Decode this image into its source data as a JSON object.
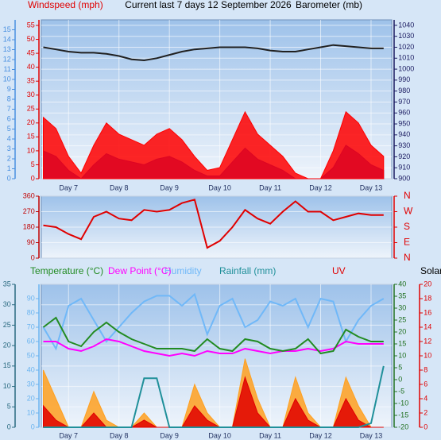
{
  "chart_data": [
    {
      "type": "line",
      "title": "Current last 7 days 12 September 2026",
      "ylabel": "Windspeed (mph)",
      "y2label": "Barometer (mb)",
      "x": [
        6.5,
        6.75,
        7,
        7.25,
        7.5,
        7.75,
        8,
        8.25,
        8.5,
        8.75,
        9,
        9.25,
        9.5,
        9.75,
        10,
        10.25,
        10.5,
        10.75,
        11,
        11.25,
        11.5,
        11.75,
        12,
        12.25,
        12.5,
        12.75,
        13,
        13.25
      ],
      "xlim": [
        6.46,
        13.41
      ],
      "xticks": [
        {
          "value": 7,
          "label": "Day 7"
        },
        {
          "value": 8,
          "label": "Day 8"
        },
        {
          "value": 9,
          "label": "Day 9"
        },
        {
          "value": 10,
          "label": "Day 10"
        },
        {
          "value": 11,
          "label": "Day 11"
        },
        {
          "value": 12,
          "label": "Day 12"
        },
        {
          "value": 13,
          "label": "Day 13"
        }
      ],
      "axes": [
        {
          "id": "y",
          "side": "left",
          "color": "#e00000",
          "lim": [
            0,
            57
          ],
          "ticks": [
            0,
            5,
            10,
            15,
            20,
            25,
            30,
            35,
            40,
            45,
            50,
            55
          ]
        },
        {
          "id": "y3",
          "side": "left",
          "color": "#4a90e0",
          "lim": [
            0,
            16
          ],
          "ticks": [
            0,
            1,
            2,
            3,
            4,
            5,
            6,
            7,
            8,
            9,
            10,
            11,
            12,
            13,
            14,
            15
          ]
        },
        {
          "id": "y2",
          "side": "right",
          "color": "#1a1a60",
          "lim": [
            900,
            1045
          ],
          "grid": true,
          "ticks": [
            900,
            910,
            920,
            930,
            940,
            950,
            960,
            970,
            980,
            990,
            1000,
            1010,
            1020,
            1030,
            1040
          ]
        }
      ],
      "series": [
        {
          "color": "#ff0000",
          "axis": "y",
          "fill": true,
          "values": [
            22,
            18,
            8,
            2,
            12,
            20,
            16,
            14,
            12,
            16,
            18,
            14,
            8,
            3,
            4,
            14,
            24,
            16,
            12,
            8,
            2,
            0,
            0,
            10,
            24,
            20,
            12,
            8
          ]
        },
        {
          "color": "#2020e0",
          "axis": "y",
          "fill": true,
          "values": [
            10,
            8,
            3,
            0,
            5,
            9,
            7,
            6,
            5,
            7,
            8,
            6,
            3,
            1,
            1,
            6,
            11,
            7,
            5,
            3,
            0,
            0,
            0,
            4,
            12,
            9,
            5,
            3
          ]
        },
        {
          "color": "#202020",
          "axis": "y2",
          "values": [
            1020,
            1018,
            1016,
            1015,
            1015,
            1014,
            1012,
            1009,
            1008,
            1010,
            1013,
            1016,
            1018,
            1019,
            1020,
            1020,
            1020,
            1019,
            1017,
            1016,
            1016,
            1018,
            1020,
            1022,
            1021,
            1020,
            1019,
            1019
          ]
        }
      ]
    },
    {
      "type": "line",
      "x": [
        6.5,
        6.75,
        7,
        7.25,
        7.5,
        7.75,
        8,
        8.25,
        8.5,
        8.75,
        9,
        9.25,
        9.5,
        9.75,
        10,
        10.25,
        10.5,
        10.75,
        11,
        11.25,
        11.5,
        11.75,
        12,
        12.25,
        12.5,
        12.75,
        13,
        13.25
      ],
      "xlim": [
        6.46,
        13.41
      ],
      "axes": [
        {
          "id": "y",
          "side": "left",
          "color": "#c00000",
          "lim": [
            0,
            360
          ],
          "grid": true,
          "ticks": [
            0,
            90,
            180,
            270,
            360
          ]
        },
        {
          "id": "y2",
          "side": "right",
          "color": "#e00000",
          "lim": [
            0,
            360
          ],
          "ticks": [
            {
              "value": 360,
              "label": "N"
            },
            {
              "value": 270,
              "label": "W"
            },
            {
              "value": 180,
              "label": "S"
            },
            {
              "value": 90,
              "label": "E"
            },
            {
              "value": 0,
              "label": "N"
            }
          ]
        }
      ],
      "series": [
        {
          "color": "#e00000",
          "axis": "y",
          "values": [
            190,
            180,
            140,
            110,
            240,
            270,
            230,
            220,
            280,
            270,
            280,
            320,
            340,
            60,
            100,
            180,
            280,
            230,
            200,
            270,
            330,
            270,
            270,
            220,
            240,
            260,
            250,
            250
          ]
        }
      ]
    },
    {
      "type": "line",
      "x": [
        6.5,
        6.75,
        7,
        7.25,
        7.5,
        7.75,
        8,
        8.25,
        8.5,
        8.75,
        9,
        9.25,
        9.5,
        9.75,
        10,
        10.25,
        10.5,
        10.75,
        11,
        11.25,
        11.5,
        11.75,
        12,
        12.25,
        12.5,
        12.75,
        13,
        13.25
      ],
      "xlim": [
        6.46,
        13.41
      ],
      "xticks": [
        {
          "value": 7,
          "label": "Day 7"
        },
        {
          "value": 8,
          "label": "Day 8"
        },
        {
          "value": 9,
          "label": "Day 9"
        },
        {
          "value": 10,
          "label": "Day 10"
        },
        {
          "value": 11,
          "label": "Day 11"
        },
        {
          "value": 12,
          "label": "Day 12"
        },
        {
          "value": 13,
          "label": "Day 13"
        }
      ],
      "axes": [
        {
          "id": "y",
          "side": "left",
          "color": "#6ab4f0",
          "lim": [
            0,
            100
          ],
          "ticks": [
            0,
            10,
            20,
            30,
            40,
            50,
            60,
            70,
            80,
            90
          ]
        },
        {
          "id": "y2",
          "side": "left",
          "color": "#2a6a80",
          "lim": [
            0,
            35
          ],
          "grid": true,
          "ticks": [
            0,
            5,
            10,
            15,
            20,
            25,
            30,
            35
          ]
        },
        {
          "id": "y3",
          "side": "right",
          "color": "#207020",
          "lim": [
            -20,
            40
          ],
          "ticks": [
            -20,
            -15,
            -10,
            -5,
            0,
            5,
            10,
            15,
            20,
            25,
            30,
            35,
            40
          ]
        },
        {
          "id": "y4",
          "side": "right",
          "color": "#e00000",
          "lim": [
            0,
            20
          ],
          "ticks": [
            0,
            2,
            4,
            6,
            8,
            10,
            12,
            14,
            16,
            18,
            20
          ]
        },
        {
          "id": "y5",
          "lim": [
            0,
            1000
          ]
        }
      ],
      "series": [
        {
          "name": "Temperature (°C)",
          "color": "#228b22",
          "axis": "y3",
          "values": [
            22,
            26,
            16,
            14,
            20,
            24,
            20,
            17,
            15,
            13,
            13,
            13,
            12,
            17,
            13,
            12,
            17,
            16,
            13,
            12,
            13,
            17,
            11,
            12,
            21,
            18,
            16,
            16
          ]
        },
        {
          "name": "Dew Point (°C)",
          "color": "#ff00ff",
          "axis": "y3",
          "values": [
            16,
            16,
            13,
            12,
            14,
            17,
            16,
            14,
            12,
            11,
            10,
            11,
            10,
            12,
            11,
            11,
            13,
            12,
            11,
            12,
            12,
            13,
            12,
            13,
            16,
            15,
            15,
            15
          ]
        },
        {
          "name": "Humidity",
          "color": "#70b8f8",
          "axis": "y",
          "values": [
            70,
            55,
            85,
            90,
            75,
            60,
            70,
            80,
            88,
            92,
            92,
            85,
            93,
            65,
            85,
            90,
            70,
            75,
            88,
            85,
            90,
            70,
            90,
            88,
            60,
            75,
            85,
            90
          ]
        },
        {
          "name": "Rainfall (mm)",
          "color": "#20909a",
          "axis": "y2",
          "values": [
            0,
            0,
            0,
            0,
            0,
            0,
            0,
            0,
            12,
            12,
            0,
            0,
            0,
            0,
            0,
            0,
            0,
            0,
            0,
            0,
            0,
            0,
            0,
            0,
            0,
            0,
            1,
            15
          ]
        },
        {
          "name": "UV",
          "color": "#e00000",
          "axis": "y4",
          "fill": true,
          "values": [
            3,
            1,
            0,
            0,
            2,
            0,
            0,
            0,
            1,
            0,
            0,
            0,
            3,
            1,
            0,
            0,
            7,
            2,
            0,
            0,
            4,
            1,
            0,
            0,
            4,
            1,
            0,
            0
          ]
        },
        {
          "name": "Solar",
          "color": "#ffa020",
          "axis": "y5",
          "fill": true,
          "values": [
            400,
            200,
            0,
            0,
            250,
            50,
            0,
            0,
            100,
            0,
            0,
            0,
            300,
            100,
            0,
            0,
            480,
            200,
            0,
            0,
            350,
            100,
            0,
            0,
            350,
            150,
            0,
            0
          ]
        }
      ]
    }
  ]
}
